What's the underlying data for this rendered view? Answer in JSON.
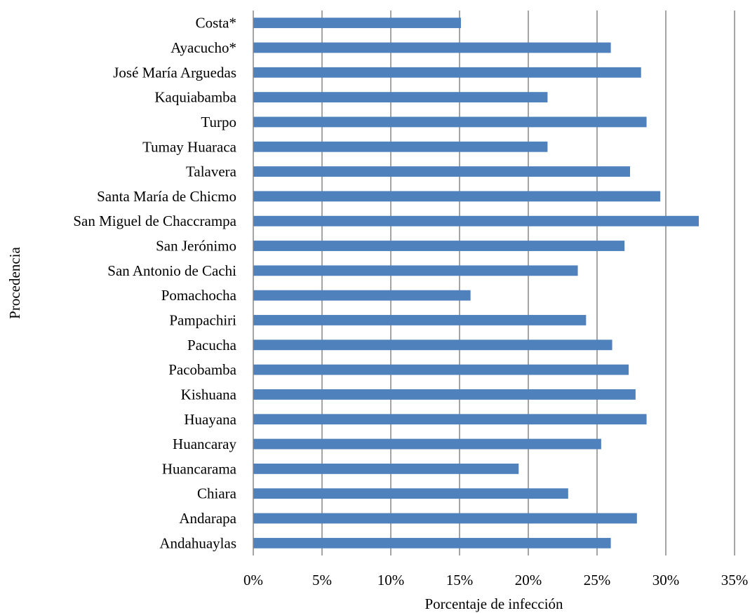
{
  "chart_data": {
    "type": "bar",
    "orientation": "horizontal",
    "xlabel": "Porcentaje de infección",
    "ylabel": "Procedencia",
    "xlim": [
      0,
      35
    ],
    "x_ticks": [
      "0%",
      "5%",
      "10%",
      "15%",
      "20%",
      "25%",
      "30%",
      "35%"
    ],
    "grid": "vertical",
    "legend": "none",
    "bar_color": "#4F81BD",
    "categories": [
      "Costa*",
      "Ayacucho*",
      "José María Arguedas",
      "Kaquiabamba",
      "Turpo",
      "Tumay Huaraca",
      "Talavera",
      "Santa María de Chicmo",
      "San Miguel de Chaccrampa",
      "San Jerónimo",
      "San Antonio de Cachi",
      "Pomachocha",
      "Pampachiri",
      "Pacucha",
      "Pacobamba",
      "Kishuana",
      "Huayana",
      "Huancaray",
      "Huancarama",
      "Chiara",
      "Andarapa",
      "Andahuaylas"
    ],
    "values": [
      15.1,
      26.0,
      28.2,
      21.4,
      28.6,
      21.4,
      27.4,
      29.6,
      32.4,
      27.0,
      23.6,
      15.8,
      24.2,
      26.1,
      27.3,
      27.8,
      28.6,
      25.3,
      19.3,
      22.9,
      27.9,
      26.0
    ]
  }
}
